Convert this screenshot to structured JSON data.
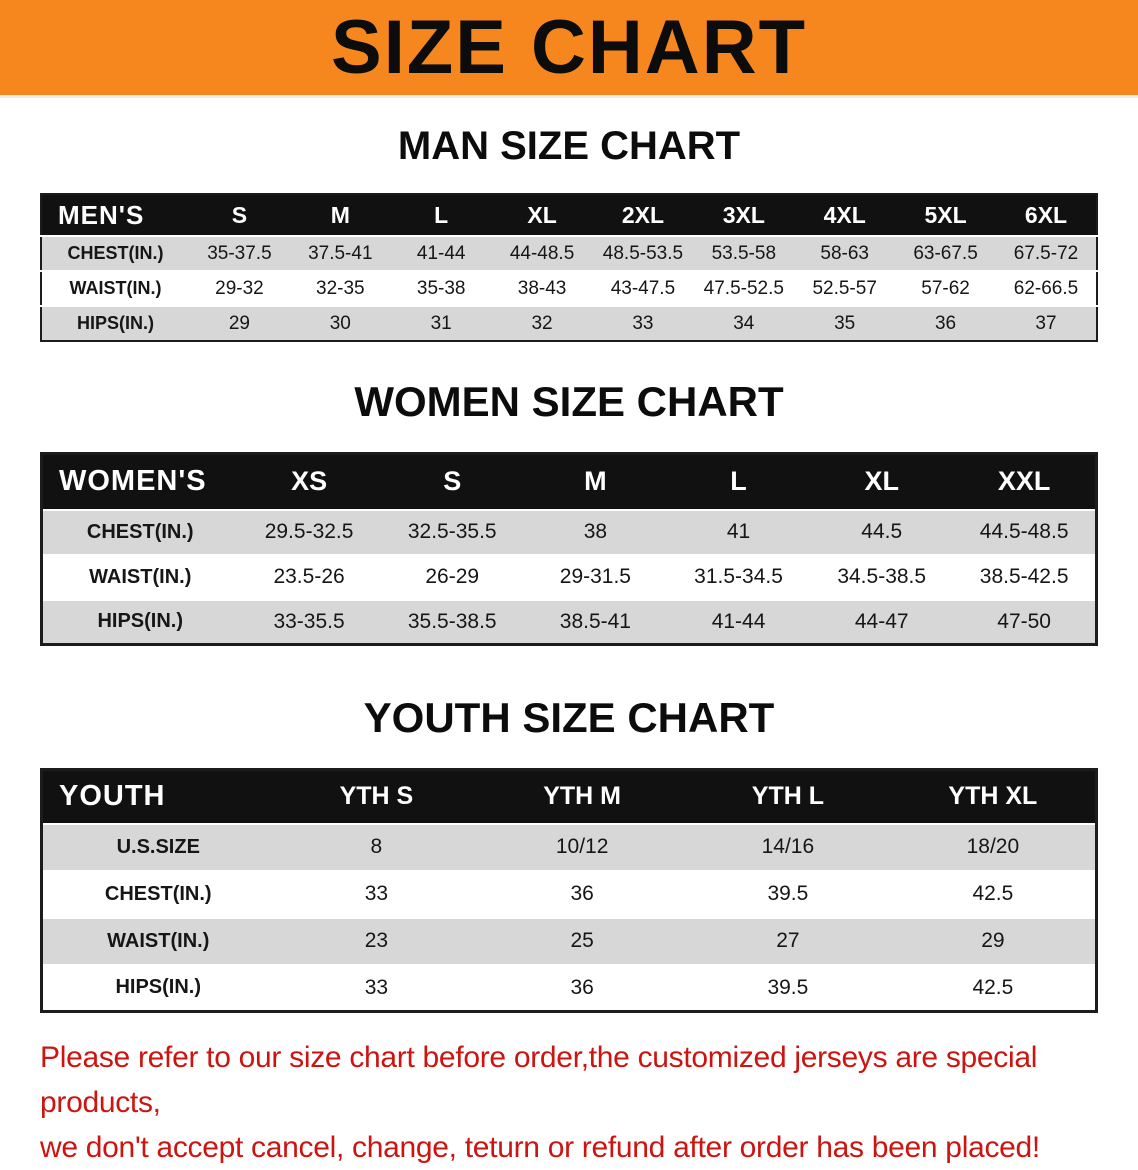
{
  "banner": {
    "title": "SIZE CHART"
  },
  "sections": [
    {
      "heading": "MAN SIZE CHART",
      "table": {
        "header": [
          "MEN'S",
          "S",
          "M",
          "L",
          "XL",
          "2XL",
          "3XL",
          "4XL",
          "5XL",
          "6XL"
        ],
        "rows": [
          [
            "CHEST(IN.)",
            "35-37.5",
            "37.5-41",
            "41-44",
            "44-48.5",
            "48.5-53.5",
            "53.5-58",
            "58-63",
            "63-67.5",
            "67.5-72"
          ],
          [
            "WAIST(IN.)",
            "29-32",
            "32-35",
            "35-38",
            "38-43",
            "43-47.5",
            "47.5-52.5",
            "52.5-57",
            "57-62",
            "62-66.5"
          ],
          [
            "HIPS(IN.)",
            "29",
            "30",
            "31",
            "32",
            "33",
            "34",
            "35",
            "36",
            "37"
          ]
        ]
      }
    },
    {
      "heading": "WOMEN SIZE CHART",
      "table": {
        "header": [
          "WOMEN'S",
          "XS",
          "S",
          "M",
          "L",
          "XL",
          "XXL"
        ],
        "rows": [
          [
            "CHEST(IN.)",
            "29.5-32.5",
            "32.5-35.5",
            "38",
            "41",
            "44.5",
            "44.5-48.5"
          ],
          [
            "WAIST(IN.)",
            "23.5-26",
            "26-29",
            "29-31.5",
            "31.5-34.5",
            "34.5-38.5",
            "38.5-42.5"
          ],
          [
            "HIPS(IN.)",
            "33-35.5",
            "35.5-38.5",
            "38.5-41",
            "41-44",
            "44-47",
            "47-50"
          ]
        ]
      }
    },
    {
      "heading": "YOUTH SIZE CHART",
      "table": {
        "header": [
          "YOUTH",
          "YTH S",
          "YTH M",
          "YTH L",
          "YTH XL"
        ],
        "rows": [
          [
            "U.S.SIZE",
            "8",
            "10/12",
            "14/16",
            "18/20"
          ],
          [
            "CHEST(IN.)",
            "33",
            "36",
            "39.5",
            "42.5"
          ],
          [
            "WAIST(IN.)",
            "23",
            "25",
            "27",
            "29"
          ],
          [
            "HIPS(IN.)",
            "33",
            "36",
            "39.5",
            "42.5"
          ]
        ]
      }
    }
  ],
  "disclaimer": {
    "line1": "Please refer to our size chart before order,the customized jerseys are special products,",
    "line2": "we don't accept cancel, change, teturn or refund after order has been placed!"
  },
  "colors": {
    "banner_bg": "#f6871f",
    "header_bg": "#111111",
    "stripe": "#d7d7d7",
    "disclaimer_red": "#cc1410"
  }
}
